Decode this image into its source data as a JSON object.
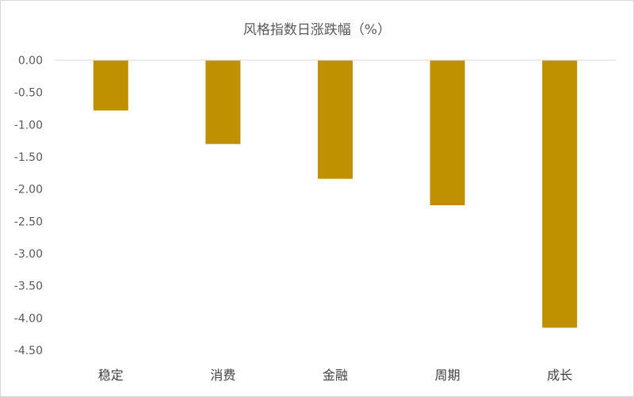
{
  "chart_data": {
    "type": "bar",
    "title": "风格指数日涨跌幅（%）",
    "categories": [
      "稳定",
      "消费",
      "金融",
      "周期",
      "成长"
    ],
    "values": [
      -0.78,
      -1.3,
      -1.84,
      -2.25,
      -4.15
    ],
    "ylim": [
      -4.5,
      0
    ],
    "yticks": [
      "0.00",
      "-0.50",
      "-1.00",
      "-1.50",
      "-2.00",
      "-2.50",
      "-3.00",
      "-3.50",
      "-4.00",
      "-4.50"
    ],
    "grid": false,
    "legend": "none",
    "bar_color": "#bf9000",
    "axis_color": "#d9d9d9"
  }
}
